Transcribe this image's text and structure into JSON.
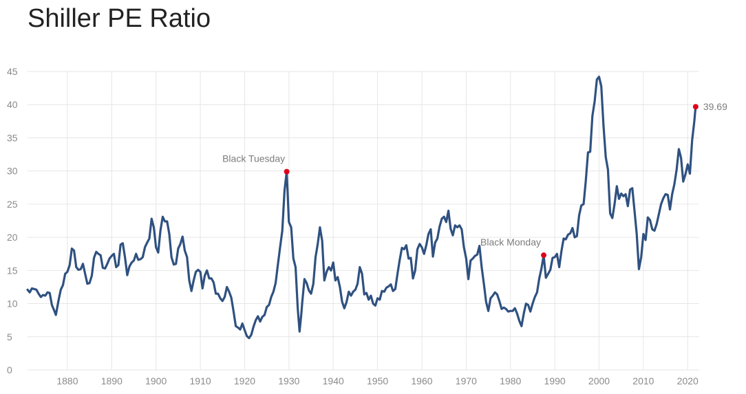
{
  "title": "Shiller PE Ratio",
  "colors": {
    "line": "#2f5180",
    "marker": "#e0001b",
    "grid": "#e6e6e6",
    "text": "#8a8a8a"
  },
  "chart_data": {
    "type": "line",
    "title": "Shiller PE Ratio",
    "xlabel": "",
    "ylabel": "",
    "xlim": [
      1871,
      2022.6
    ],
    "ylim": [
      0,
      45
    ],
    "grid": true,
    "x_ticks": [
      "1880",
      "1890",
      "1900",
      "1910",
      "1920",
      "1930",
      "1940",
      "1950",
      "1960",
      "1970",
      "1980",
      "1990",
      "2000",
      "2010",
      "2020"
    ],
    "y_ticks": [
      "0",
      "5",
      "10",
      "15",
      "20",
      "25",
      "30",
      "35",
      "40",
      "45"
    ],
    "series": [
      {
        "points": [
          [
            1871,
            12.1
          ],
          [
            1871.5,
            11.7
          ],
          [
            1872,
            12.3
          ],
          [
            1873,
            12.1
          ],
          [
            1873.5,
            11.5
          ],
          [
            1874,
            11.0
          ],
          [
            1874.5,
            11.3
          ],
          [
            1875,
            11.2
          ],
          [
            1875.5,
            11.7
          ],
          [
            1876,
            11.6
          ],
          [
            1876.5,
            9.8
          ],
          [
            1877,
            9.0
          ],
          [
            1877.4,
            8.3
          ],
          [
            1878,
            10.5
          ],
          [
            1878.5,
            12.1
          ],
          [
            1879,
            12.8
          ],
          [
            1879.5,
            14.5
          ],
          [
            1880,
            14.8
          ],
          [
            1880.5,
            15.8
          ],
          [
            1881,
            18.3
          ],
          [
            1881.5,
            18.0
          ],
          [
            1882,
            15.5
          ],
          [
            1882.5,
            15.1
          ],
          [
            1883,
            15.2
          ],
          [
            1883.5,
            16.0
          ],
          [
            1884,
            14.5
          ],
          [
            1884.5,
            13.0
          ],
          [
            1885,
            13.1
          ],
          [
            1885.5,
            14.2
          ],
          [
            1886,
            16.9
          ],
          [
            1886.5,
            17.8
          ],
          [
            1887,
            17.5
          ],
          [
            1887.5,
            17.3
          ],
          [
            1888,
            15.4
          ],
          [
            1888.5,
            15.3
          ],
          [
            1889,
            16.0
          ],
          [
            1889.5,
            16.8
          ],
          [
            1890,
            17.2
          ],
          [
            1890.5,
            17.5
          ],
          [
            1891,
            15.5
          ],
          [
            1891.5,
            15.8
          ],
          [
            1892,
            18.9
          ],
          [
            1892.5,
            19.1
          ],
          [
            1893,
            17.0
          ],
          [
            1893.5,
            14.3
          ],
          [
            1894,
            15.6
          ],
          [
            1894.5,
            16.2
          ],
          [
            1895,
            16.5
          ],
          [
            1895.5,
            17.5
          ],
          [
            1896,
            16.6
          ],
          [
            1896.5,
            16.7
          ],
          [
            1897,
            17.0
          ],
          [
            1897.5,
            18.5
          ],
          [
            1898,
            19.2
          ],
          [
            1898.5,
            19.8
          ],
          [
            1899,
            22.8
          ],
          [
            1899.5,
            21.5
          ],
          [
            1900,
            18.5
          ],
          [
            1900.5,
            17.7
          ],
          [
            1901,
            21.0
          ],
          [
            1901.5,
            23.1
          ],
          [
            1902,
            22.4
          ],
          [
            1902.5,
            22.4
          ],
          [
            1903,
            20.5
          ],
          [
            1903.5,
            17.0
          ],
          [
            1904,
            15.9
          ],
          [
            1904.5,
            16.0
          ],
          [
            1905,
            18.3
          ],
          [
            1905.5,
            19.0
          ],
          [
            1906,
            20.1
          ],
          [
            1906.5,
            18.0
          ],
          [
            1907,
            17.0
          ],
          [
            1907.5,
            13.5
          ],
          [
            1908,
            11.9
          ],
          [
            1908.5,
            13.5
          ],
          [
            1909,
            14.8
          ],
          [
            1909.5,
            15.1
          ],
          [
            1910,
            14.8
          ],
          [
            1910.5,
            12.3
          ],
          [
            1911,
            14.2
          ],
          [
            1911.5,
            15.0
          ],
          [
            1912,
            13.8
          ],
          [
            1912.5,
            13.8
          ],
          [
            1913,
            13.2
          ],
          [
            1913.5,
            11.5
          ],
          [
            1914,
            11.5
          ],
          [
            1914.5,
            10.8
          ],
          [
            1915,
            10.4
          ],
          [
            1915.5,
            11.0
          ],
          [
            1916,
            12.5
          ],
          [
            1916.5,
            11.8
          ],
          [
            1917,
            10.9
          ],
          [
            1917.5,
            8.8
          ],
          [
            1918,
            6.6
          ],
          [
            1918.5,
            6.4
          ],
          [
            1919,
            6.1
          ],
          [
            1919.5,
            7.0
          ],
          [
            1920,
            6.0
          ],
          [
            1920.5,
            5.1
          ],
          [
            1921,
            4.8
          ],
          [
            1921.5,
            5.3
          ],
          [
            1922,
            6.5
          ],
          [
            1922.5,
            7.5
          ],
          [
            1923,
            8.1
          ],
          [
            1923.5,
            7.3
          ],
          [
            1924,
            8.0
          ],
          [
            1924.5,
            8.3
          ],
          [
            1925,
            9.5
          ],
          [
            1925.5,
            9.8
          ],
          [
            1926,
            11.0
          ],
          [
            1926.5,
            11.8
          ],
          [
            1927,
            13.1
          ],
          [
            1927.5,
            15.8
          ],
          [
            1928,
            18.5
          ],
          [
            1928.5,
            21.0
          ],
          [
            1929,
            27.0
          ],
          [
            1929.5,
            29.9
          ],
          [
            1930,
            22.3
          ],
          [
            1930.5,
            21.5
          ],
          [
            1931,
            16.8
          ],
          [
            1931.5,
            15.5
          ],
          [
            1932,
            9.2
          ],
          [
            1932.4,
            5.8
          ],
          [
            1932.8,
            8.5
          ],
          [
            1933,
            10.2
          ],
          [
            1933.5,
            13.7
          ],
          [
            1934,
            13.1
          ],
          [
            1934.5,
            12.0
          ],
          [
            1935,
            11.5
          ],
          [
            1935.5,
            13.0
          ],
          [
            1936,
            17.0
          ],
          [
            1936.5,
            19.0
          ],
          [
            1937,
            21.5
          ],
          [
            1937.5,
            19.5
          ],
          [
            1938,
            13.5
          ],
          [
            1938.5,
            14.8
          ],
          [
            1939,
            15.5
          ],
          [
            1939.5,
            15.0
          ],
          [
            1940,
            16.2
          ],
          [
            1940.5,
            13.5
          ],
          [
            1941,
            14.0
          ],
          [
            1941.5,
            12.5
          ],
          [
            1942,
            10.3
          ],
          [
            1942.5,
            9.3
          ],
          [
            1943,
            10.2
          ],
          [
            1943.5,
            11.8
          ],
          [
            1944,
            11.2
          ],
          [
            1944.5,
            11.8
          ],
          [
            1945,
            12.1
          ],
          [
            1945.5,
            13.0
          ],
          [
            1946,
            15.5
          ],
          [
            1946.5,
            14.5
          ],
          [
            1947,
            11.4
          ],
          [
            1947.5,
            11.6
          ],
          [
            1948,
            10.6
          ],
          [
            1948.5,
            11.2
          ],
          [
            1949,
            10.0
          ],
          [
            1949.5,
            9.7
          ],
          [
            1950,
            10.8
          ],
          [
            1950.5,
            10.6
          ],
          [
            1951,
            11.9
          ],
          [
            1951.5,
            11.8
          ],
          [
            1952,
            12.4
          ],
          [
            1952.5,
            12.6
          ],
          [
            1953,
            12.9
          ],
          [
            1953.5,
            11.9
          ],
          [
            1954,
            12.2
          ],
          [
            1954.5,
            14.5
          ],
          [
            1955,
            16.6
          ],
          [
            1955.5,
            18.4
          ],
          [
            1956,
            18.2
          ],
          [
            1956.5,
            18.8
          ],
          [
            1957,
            16.8
          ],
          [
            1957.5,
            16.9
          ],
          [
            1958,
            13.8
          ],
          [
            1958.5,
            15.0
          ],
          [
            1959,
            18.2
          ],
          [
            1959.5,
            19.0
          ],
          [
            1960,
            18.5
          ],
          [
            1960.5,
            17.5
          ],
          [
            1961,
            18.8
          ],
          [
            1961.5,
            20.5
          ],
          [
            1962,
            21.2
          ],
          [
            1962.5,
            17.1
          ],
          [
            1963,
            19.2
          ],
          [
            1963.5,
            19.8
          ],
          [
            1964,
            21.6
          ],
          [
            1964.5,
            22.8
          ],
          [
            1965,
            23.1
          ],
          [
            1965.5,
            22.3
          ],
          [
            1966,
            24.0
          ],
          [
            1966.5,
            21.3
          ],
          [
            1967,
            20.3
          ],
          [
            1967.5,
            21.8
          ],
          [
            1968,
            21.5
          ],
          [
            1968.5,
            21.8
          ],
          [
            1969,
            21.2
          ],
          [
            1969.5,
            18.5
          ],
          [
            1970,
            16.8
          ],
          [
            1970.5,
            13.7
          ],
          [
            1971,
            16.5
          ],
          [
            1971.5,
            16.8
          ],
          [
            1972,
            17.2
          ],
          [
            1972.5,
            17.4
          ],
          [
            1973,
            18.7
          ],
          [
            1973.5,
            15.5
          ],
          [
            1974,
            13.0
          ],
          [
            1974.5,
            10.3
          ],
          [
            1975,
            8.9
          ],
          [
            1975.5,
            10.8
          ],
          [
            1976,
            11.2
          ],
          [
            1976.5,
            11.7
          ],
          [
            1977,
            11.4
          ],
          [
            1977.5,
            10.4
          ],
          [
            1978,
            9.2
          ],
          [
            1978.5,
            9.4
          ],
          [
            1979,
            9.2
          ],
          [
            1979.5,
            8.8
          ],
          [
            1980,
            8.9
          ],
          [
            1980.5,
            8.9
          ],
          [
            1981,
            9.3
          ],
          [
            1981.5,
            8.5
          ],
          [
            1982,
            7.4
          ],
          [
            1982.5,
            6.6
          ],
          [
            1983,
            8.5
          ],
          [
            1983.5,
            10.0
          ],
          [
            1984,
            9.8
          ],
          [
            1984.5,
            8.8
          ],
          [
            1985,
            10.0
          ],
          [
            1985.5,
            11.0
          ],
          [
            1986,
            11.7
          ],
          [
            1986.5,
            13.8
          ],
          [
            1987,
            15.3
          ],
          [
            1987.5,
            17.3
          ],
          [
            1988,
            13.9
          ],
          [
            1988.5,
            14.5
          ],
          [
            1989,
            15.1
          ],
          [
            1989.5,
            16.9
          ],
          [
            1990,
            17.0
          ],
          [
            1990.5,
            17.5
          ],
          [
            1991,
            15.5
          ],
          [
            1991.5,
            17.9
          ],
          [
            1992,
            19.8
          ],
          [
            1992.5,
            19.7
          ],
          [
            1993,
            20.4
          ],
          [
            1993.5,
            20.6
          ],
          [
            1994,
            21.4
          ],
          [
            1994.5,
            20.0
          ],
          [
            1995,
            20.2
          ],
          [
            1995.5,
            23.3
          ],
          [
            1996,
            24.8
          ],
          [
            1996.5,
            25.0
          ],
          [
            1997,
            28.5
          ],
          [
            1997.5,
            32.8
          ],
          [
            1998,
            32.9
          ],
          [
            1998.5,
            38.3
          ],
          [
            1999,
            40.5
          ],
          [
            1999.5,
            43.8
          ],
          [
            2000,
            44.2
          ],
          [
            2000.5,
            42.8
          ],
          [
            2001,
            36.9
          ],
          [
            2001.5,
            32.1
          ],
          [
            2002,
            30.2
          ],
          [
            2002.5,
            23.6
          ],
          [
            2003,
            22.9
          ],
          [
            2003.5,
            25.0
          ],
          [
            2004,
            27.7
          ],
          [
            2004.5,
            25.8
          ],
          [
            2005,
            26.6
          ],
          [
            2005.5,
            26.2
          ],
          [
            2006,
            26.5
          ],
          [
            2006.5,
            24.7
          ],
          [
            2007,
            27.2
          ],
          [
            2007.5,
            27.4
          ],
          [
            2008,
            24.0
          ],
          [
            2008.5,
            20.5
          ],
          [
            2009,
            15.2
          ],
          [
            2009.5,
            17.0
          ],
          [
            2010,
            20.5
          ],
          [
            2010.5,
            19.6
          ],
          [
            2011,
            23.0
          ],
          [
            2011.5,
            22.6
          ],
          [
            2012,
            21.2
          ],
          [
            2012.5,
            21.0
          ],
          [
            2013,
            22.0
          ],
          [
            2013.5,
            23.5
          ],
          [
            2014,
            25.0
          ],
          [
            2014.5,
            25.9
          ],
          [
            2015,
            26.5
          ],
          [
            2015.5,
            26.4
          ],
          [
            2016,
            24.2
          ],
          [
            2016.5,
            26.5
          ],
          [
            2017,
            28.0
          ],
          [
            2017.5,
            30.2
          ],
          [
            2018,
            33.3
          ],
          [
            2018.5,
            32.0
          ],
          [
            2019,
            28.4
          ],
          [
            2019.5,
            29.5
          ],
          [
            2020,
            31.0
          ],
          [
            2020.5,
            29.6
          ],
          [
            2021,
            34.6
          ],
          [
            2021.5,
            37.5
          ],
          [
            2021.8,
            39.69
          ]
        ]
      }
    ],
    "markers": [
      {
        "x": 1929.5,
        "y": 29.9,
        "label": "Black Tuesday"
      },
      {
        "x": 1987.5,
        "y": 17.3,
        "label": "Black Monday"
      },
      {
        "x": 2021.8,
        "y": 39.69,
        "label": "39.69"
      }
    ]
  }
}
